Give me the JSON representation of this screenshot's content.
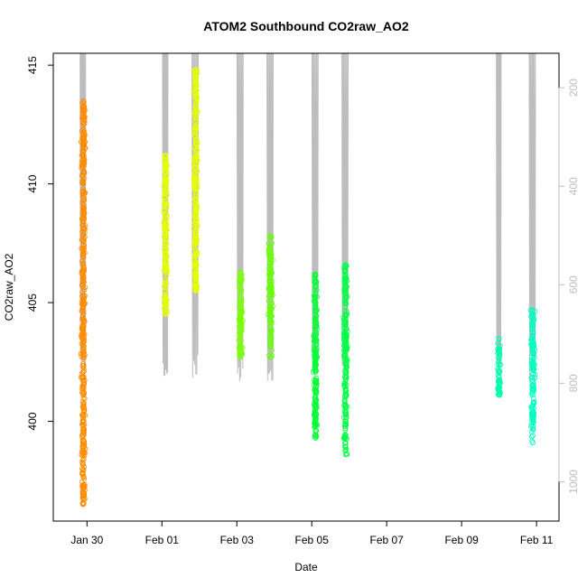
{
  "chart_data": {
    "type": "scatter",
    "title": "ATOM2 Southbound CO2raw_AO2",
    "xlabel": "Date",
    "ylabel": "CO2raw_AO2",
    "x_unit": "days",
    "x_ticks": [
      {
        "value": "2017-01-30",
        "label": "Jan 30"
      },
      {
        "value": "2017-02-01",
        "label": "Feb 01"
      },
      {
        "value": "2017-02-03",
        "label": "Feb 03"
      },
      {
        "value": "2017-02-05",
        "label": "Feb 05"
      },
      {
        "value": "2017-02-07",
        "label": "Feb 07"
      },
      {
        "value": "2017-02-09",
        "label": "Feb 09"
      },
      {
        "value": "2017-02-11",
        "label": "Feb 11"
      }
    ],
    "xlim": [
      "2017-01-29.1",
      "2017-02-11.6"
    ],
    "ylim": [
      395.8,
      415.5
    ],
    "y_ticks": [
      400,
      405,
      410,
      415
    ],
    "y2_label": "",
    "y2_ticks": [
      200,
      400,
      600,
      800,
      1000
    ],
    "y2_lim": [
      1080,
      130
    ],
    "y2_reversed": true,
    "y2_color": "#bdbdbd",
    "grid": false,
    "series": [
      {
        "x_center": "2017-01-29.9",
        "x_spread": 0.07,
        "y_min": 396.5,
        "y_max": 413.5,
        "color": "#ff8c00"
      },
      {
        "x_center": "2017-02-01.1",
        "x_spread": 0.07,
        "y_min": 404.5,
        "y_max": 411.2,
        "color": "#e6ff00"
      },
      {
        "x_center": "2017-02-01.9",
        "x_spread": 0.08,
        "y_min": 405.5,
        "y_max": 414.8,
        "color": "#e6ff00"
      },
      {
        "x_center": "2017-02-03.1",
        "x_spread": 0.08,
        "y_min": 402.7,
        "y_max": 406.3,
        "color": "#7aff00"
      },
      {
        "x_center": "2017-02-03.9",
        "x_spread": 0.08,
        "y_min": 402.7,
        "y_max": 407.8,
        "color": "#66ff00"
      },
      {
        "x_center": "2017-02-05.1",
        "x_spread": 0.08,
        "y_min": 399.3,
        "y_max": 406.2,
        "color": "#00ff33"
      },
      {
        "x_center": "2017-02-05.9",
        "x_spread": 0.08,
        "y_min": 398.6,
        "y_max": 406.6,
        "color": "#00ff44"
      },
      {
        "x_center": "2017-02-10.0",
        "x_spread": 0.06,
        "y_min": 401.1,
        "y_max": 403.5,
        "color": "#00ffaa"
      },
      {
        "x_center": "2017-02-10.9",
        "x_spread": 0.08,
        "y_min": 399.1,
        "y_max": 404.7,
        "color": "#00ffc0"
      }
    ]
  }
}
